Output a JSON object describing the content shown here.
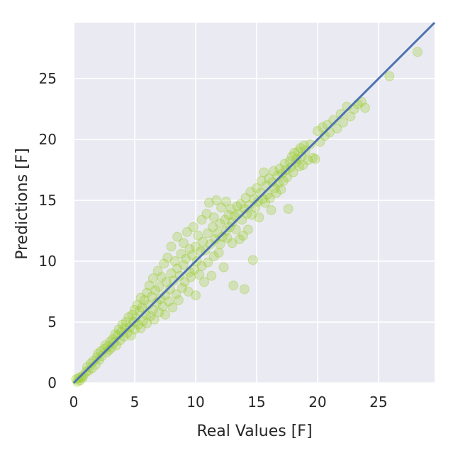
{
  "chart_data": {
    "type": "scatter",
    "title": "",
    "xlabel": "Real Values [F]",
    "ylabel": "Predictions [F]",
    "xlim": [
      0,
      29.6
    ],
    "ylim": [
      0,
      29.6
    ],
    "xticks": [
      "0",
      "5",
      "10",
      "15",
      "20",
      "25"
    ],
    "yticks": [
      "0",
      "5",
      "10",
      "15",
      "20",
      "25"
    ],
    "grid": true,
    "background_color": "#eaeaf2",
    "grid_color": "#ffffff",
    "point_color": "#9acd32",
    "point_opacity": 0.3,
    "line_color": "#4c72b0",
    "reference_line": {
      "x": [
        0,
        29.6
      ],
      "y": [
        0,
        29.6
      ]
    },
    "series": [
      {
        "points": [
          [
            0.2,
            0.3
          ],
          [
            0.3,
            0.1
          ],
          [
            0.4,
            0.4
          ],
          [
            0.5,
            0.2
          ],
          [
            0.6,
            0.5
          ],
          [
            0.7,
            0.4
          ],
          [
            0.8,
            0.6
          ],
          [
            1.0,
            0.9
          ],
          [
            1.1,
            1.3
          ],
          [
            1.2,
            1.0
          ],
          [
            1.4,
            1.6
          ],
          [
            1.5,
            1.2
          ],
          [
            1.6,
            1.8
          ],
          [
            1.8,
            1.5
          ],
          [
            1.9,
            2.1
          ],
          [
            2.0,
            2.4
          ],
          [
            2.1,
            1.9
          ],
          [
            2.2,
            2.6
          ],
          [
            2.3,
            2.2
          ],
          [
            2.5,
            2.8
          ],
          [
            2.6,
            3.1
          ],
          [
            2.7,
            2.5
          ],
          [
            2.8,
            3.0
          ],
          [
            2.9,
            2.7
          ],
          [
            3.0,
            3.4
          ],
          [
            3.1,
            2.9
          ],
          [
            3.2,
            3.6
          ],
          [
            3.3,
            3.3
          ],
          [
            3.4,
            4.0
          ],
          [
            3.5,
            3.1
          ],
          [
            3.6,
            3.9
          ],
          [
            3.7,
            4.4
          ],
          [
            3.8,
            3.5
          ],
          [
            3.9,
            4.2
          ],
          [
            4.0,
            4.8
          ],
          [
            4.1,
            3.8
          ],
          [
            4.2,
            4.5
          ],
          [
            4.3,
            5.0
          ],
          [
            4.4,
            4.1
          ],
          [
            4.5,
            5.4
          ],
          [
            4.6,
            4.6
          ],
          [
            4.7,
            3.9
          ],
          [
            4.8,
            5.6
          ],
          [
            4.9,
            5.0
          ],
          [
            5.0,
            6.0
          ],
          [
            5.0,
            4.4
          ],
          [
            5.1,
            5.3
          ],
          [
            5.2,
            6.4
          ],
          [
            5.3,
            4.8
          ],
          [
            5.4,
            5.9
          ],
          [
            5.5,
            7.0
          ],
          [
            5.5,
            4.5
          ],
          [
            5.6,
            6.2
          ],
          [
            5.7,
            5.1
          ],
          [
            5.8,
            6.8
          ],
          [
            5.9,
            5.6
          ],
          [
            6.0,
            7.4
          ],
          [
            6.0,
            4.9
          ],
          [
            6.1,
            6.4
          ],
          [
            6.2,
            8.0
          ],
          [
            6.3,
            5.5
          ],
          [
            6.4,
            7.1
          ],
          [
            6.5,
            6.0
          ],
          [
            6.5,
            8.6
          ],
          [
            6.6,
            5.2
          ],
          [
            6.7,
            7.6
          ],
          [
            6.8,
            6.6
          ],
          [
            6.9,
            9.2
          ],
          [
            7.0,
            5.8
          ],
          [
            7.0,
            7.9
          ],
          [
            7.1,
            6.9
          ],
          [
            7.2,
            8.7
          ],
          [
            7.3,
            6.3
          ],
          [
            7.4,
            9.8
          ],
          [
            7.5,
            7.2
          ],
          [
            7.5,
            5.6
          ],
          [
            7.6,
            8.3
          ],
          [
            7.7,
            10.3
          ],
          [
            7.8,
            6.7
          ],
          [
            7.9,
            7.7
          ],
          [
            8.0,
            9.0
          ],
          [
            8.0,
            11.2
          ],
          [
            8.1,
            6.2
          ],
          [
            8.2,
            8.4
          ],
          [
            8.3,
            10.0
          ],
          [
            8.4,
            7.3
          ],
          [
            8.5,
            9.4
          ],
          [
            8.5,
            12.0
          ],
          [
            8.6,
            6.8
          ],
          [
            8.7,
            8.8
          ],
          [
            8.8,
            10.6
          ],
          [
            8.9,
            7.8
          ],
          [
            9.0,
            9.7
          ],
          [
            9.0,
            11.5
          ],
          [
            9.1,
            8.3
          ],
          [
            9.2,
            10.2
          ],
          [
            9.3,
            12.4
          ],
          [
            9.4,
            7.5
          ],
          [
            9.5,
            9.1
          ],
          [
            9.5,
            11.0
          ],
          [
            9.6,
            8.7
          ],
          [
            9.7,
            10.5
          ],
          [
            9.8,
            12.8
          ],
          [
            9.9,
            9.3
          ],
          [
            10.0,
            11.2
          ],
          [
            10.0,
            7.2
          ],
          [
            10.1,
            10.0
          ],
          [
            10.2,
            12.1
          ],
          [
            10.3,
            8.9
          ],
          [
            10.4,
            10.8
          ],
          [
            10.5,
            13.4
          ],
          [
            10.5,
            9.6
          ],
          [
            10.6,
            11.6
          ],
          [
            10.7,
            8.3
          ],
          [
            10.8,
            10.9
          ],
          [
            10.9,
            13.9
          ],
          [
            11.0,
            12.3
          ],
          [
            11.0,
            9.9
          ],
          [
            11.1,
            14.8
          ],
          [
            11.2,
            11.4
          ],
          [
            11.3,
            8.8
          ],
          [
            11.4,
            12.8
          ],
          [
            11.5,
            10.4
          ],
          [
            11.5,
            13.6
          ],
          [
            11.6,
            11.8
          ],
          [
            11.7,
            15.0
          ],
          [
            11.8,
            12.3
          ],
          [
            11.9,
            10.7
          ],
          [
            12.0,
            13.1
          ],
          [
            12.0,
            11.4
          ],
          [
            12.1,
            14.4
          ],
          [
            12.2,
            12.0
          ],
          [
            12.3,
            9.5
          ],
          [
            12.4,
            13.4
          ],
          [
            12.5,
            12.5
          ],
          [
            12.5,
            14.9
          ],
          [
            12.6,
            11.9
          ],
          [
            12.7,
            13.8
          ],
          [
            12.8,
            12.8
          ],
          [
            12.9,
            14.3
          ],
          [
            13.0,
            13.2
          ],
          [
            13.0,
            11.5
          ],
          [
            13.1,
            8.0
          ],
          [
            13.2,
            13.7
          ],
          [
            13.3,
            12.6
          ],
          [
            13.4,
            14.5
          ],
          [
            13.5,
            13.9
          ],
          [
            13.6,
            11.8
          ],
          [
            13.7,
            14.7
          ],
          [
            13.8,
            13.4
          ],
          [
            13.9,
            12.1
          ],
          [
            14.0,
            14.3
          ],
          [
            14.0,
            7.7
          ],
          [
            14.1,
            15.2
          ],
          [
            14.2,
            13.9
          ],
          [
            14.3,
            12.6
          ],
          [
            14.4,
            14.6
          ],
          [
            14.5,
            15.7
          ],
          [
            14.6,
            13.8
          ],
          [
            14.7,
            10.1
          ],
          [
            14.8,
            15.1
          ],
          [
            14.9,
            14.4
          ],
          [
            15.0,
            16.0
          ],
          [
            15.1,
            14.9
          ],
          [
            15.2,
            13.6
          ],
          [
            15.3,
            15.6
          ],
          [
            15.4,
            16.6
          ],
          [
            15.5,
            15.1
          ],
          [
            15.6,
            17.3
          ],
          [
            15.7,
            14.8
          ],
          [
            15.8,
            16.2
          ],
          [
            15.9,
            15.5
          ],
          [
            16.0,
            16.8
          ],
          [
            16.1,
            15.2
          ],
          [
            16.2,
            14.2
          ],
          [
            16.3,
            16.5
          ],
          [
            16.4,
            17.4
          ],
          [
            16.5,
            16.0
          ],
          [
            16.6,
            15.6
          ],
          [
            16.7,
            17.0
          ],
          [
            16.8,
            16.4
          ],
          [
            16.9,
            17.6
          ],
          [
            17.0,
            15.9
          ],
          [
            17.1,
            17.2
          ],
          [
            17.2,
            16.6
          ],
          [
            17.3,
            18.0
          ],
          [
            17.4,
            17.5
          ],
          [
            17.5,
            16.9
          ],
          [
            17.6,
            14.3
          ],
          [
            17.7,
            18.2
          ],
          [
            17.8,
            17.7
          ],
          [
            17.9,
            18.6
          ],
          [
            18.0,
            17.3
          ],
          [
            18.1,
            18.9
          ],
          [
            18.2,
            18.1
          ],
          [
            18.3,
            18.4
          ],
          [
            18.4,
            19.0
          ],
          [
            18.5,
            17.8
          ],
          [
            18.6,
            19.3
          ],
          [
            18.7,
            18.6
          ],
          [
            18.8,
            17.9
          ],
          [
            18.9,
            19.5
          ],
          [
            19.0,
            19.1
          ],
          [
            19.2,
            18.3
          ],
          [
            19.4,
            19.6
          ],
          [
            19.6,
            18.5
          ],
          [
            19.8,
            18.4
          ],
          [
            20.0,
            20.7
          ],
          [
            20.2,
            19.8
          ],
          [
            20.4,
            21.0
          ],
          [
            20.6,
            20.3
          ],
          [
            20.8,
            21.2
          ],
          [
            21.0,
            20.6
          ],
          [
            21.3,
            21.6
          ],
          [
            21.6,
            20.9
          ],
          [
            21.9,
            22.1
          ],
          [
            22.1,
            21.4
          ],
          [
            22.4,
            22.7
          ],
          [
            22.7,
            21.9
          ],
          [
            23.0,
            22.5
          ],
          [
            23.3,
            22.9
          ],
          [
            23.6,
            23.1
          ],
          [
            23.9,
            22.6
          ],
          [
            25.9,
            25.2
          ],
          [
            28.2,
            27.2
          ]
        ]
      }
    ]
  }
}
